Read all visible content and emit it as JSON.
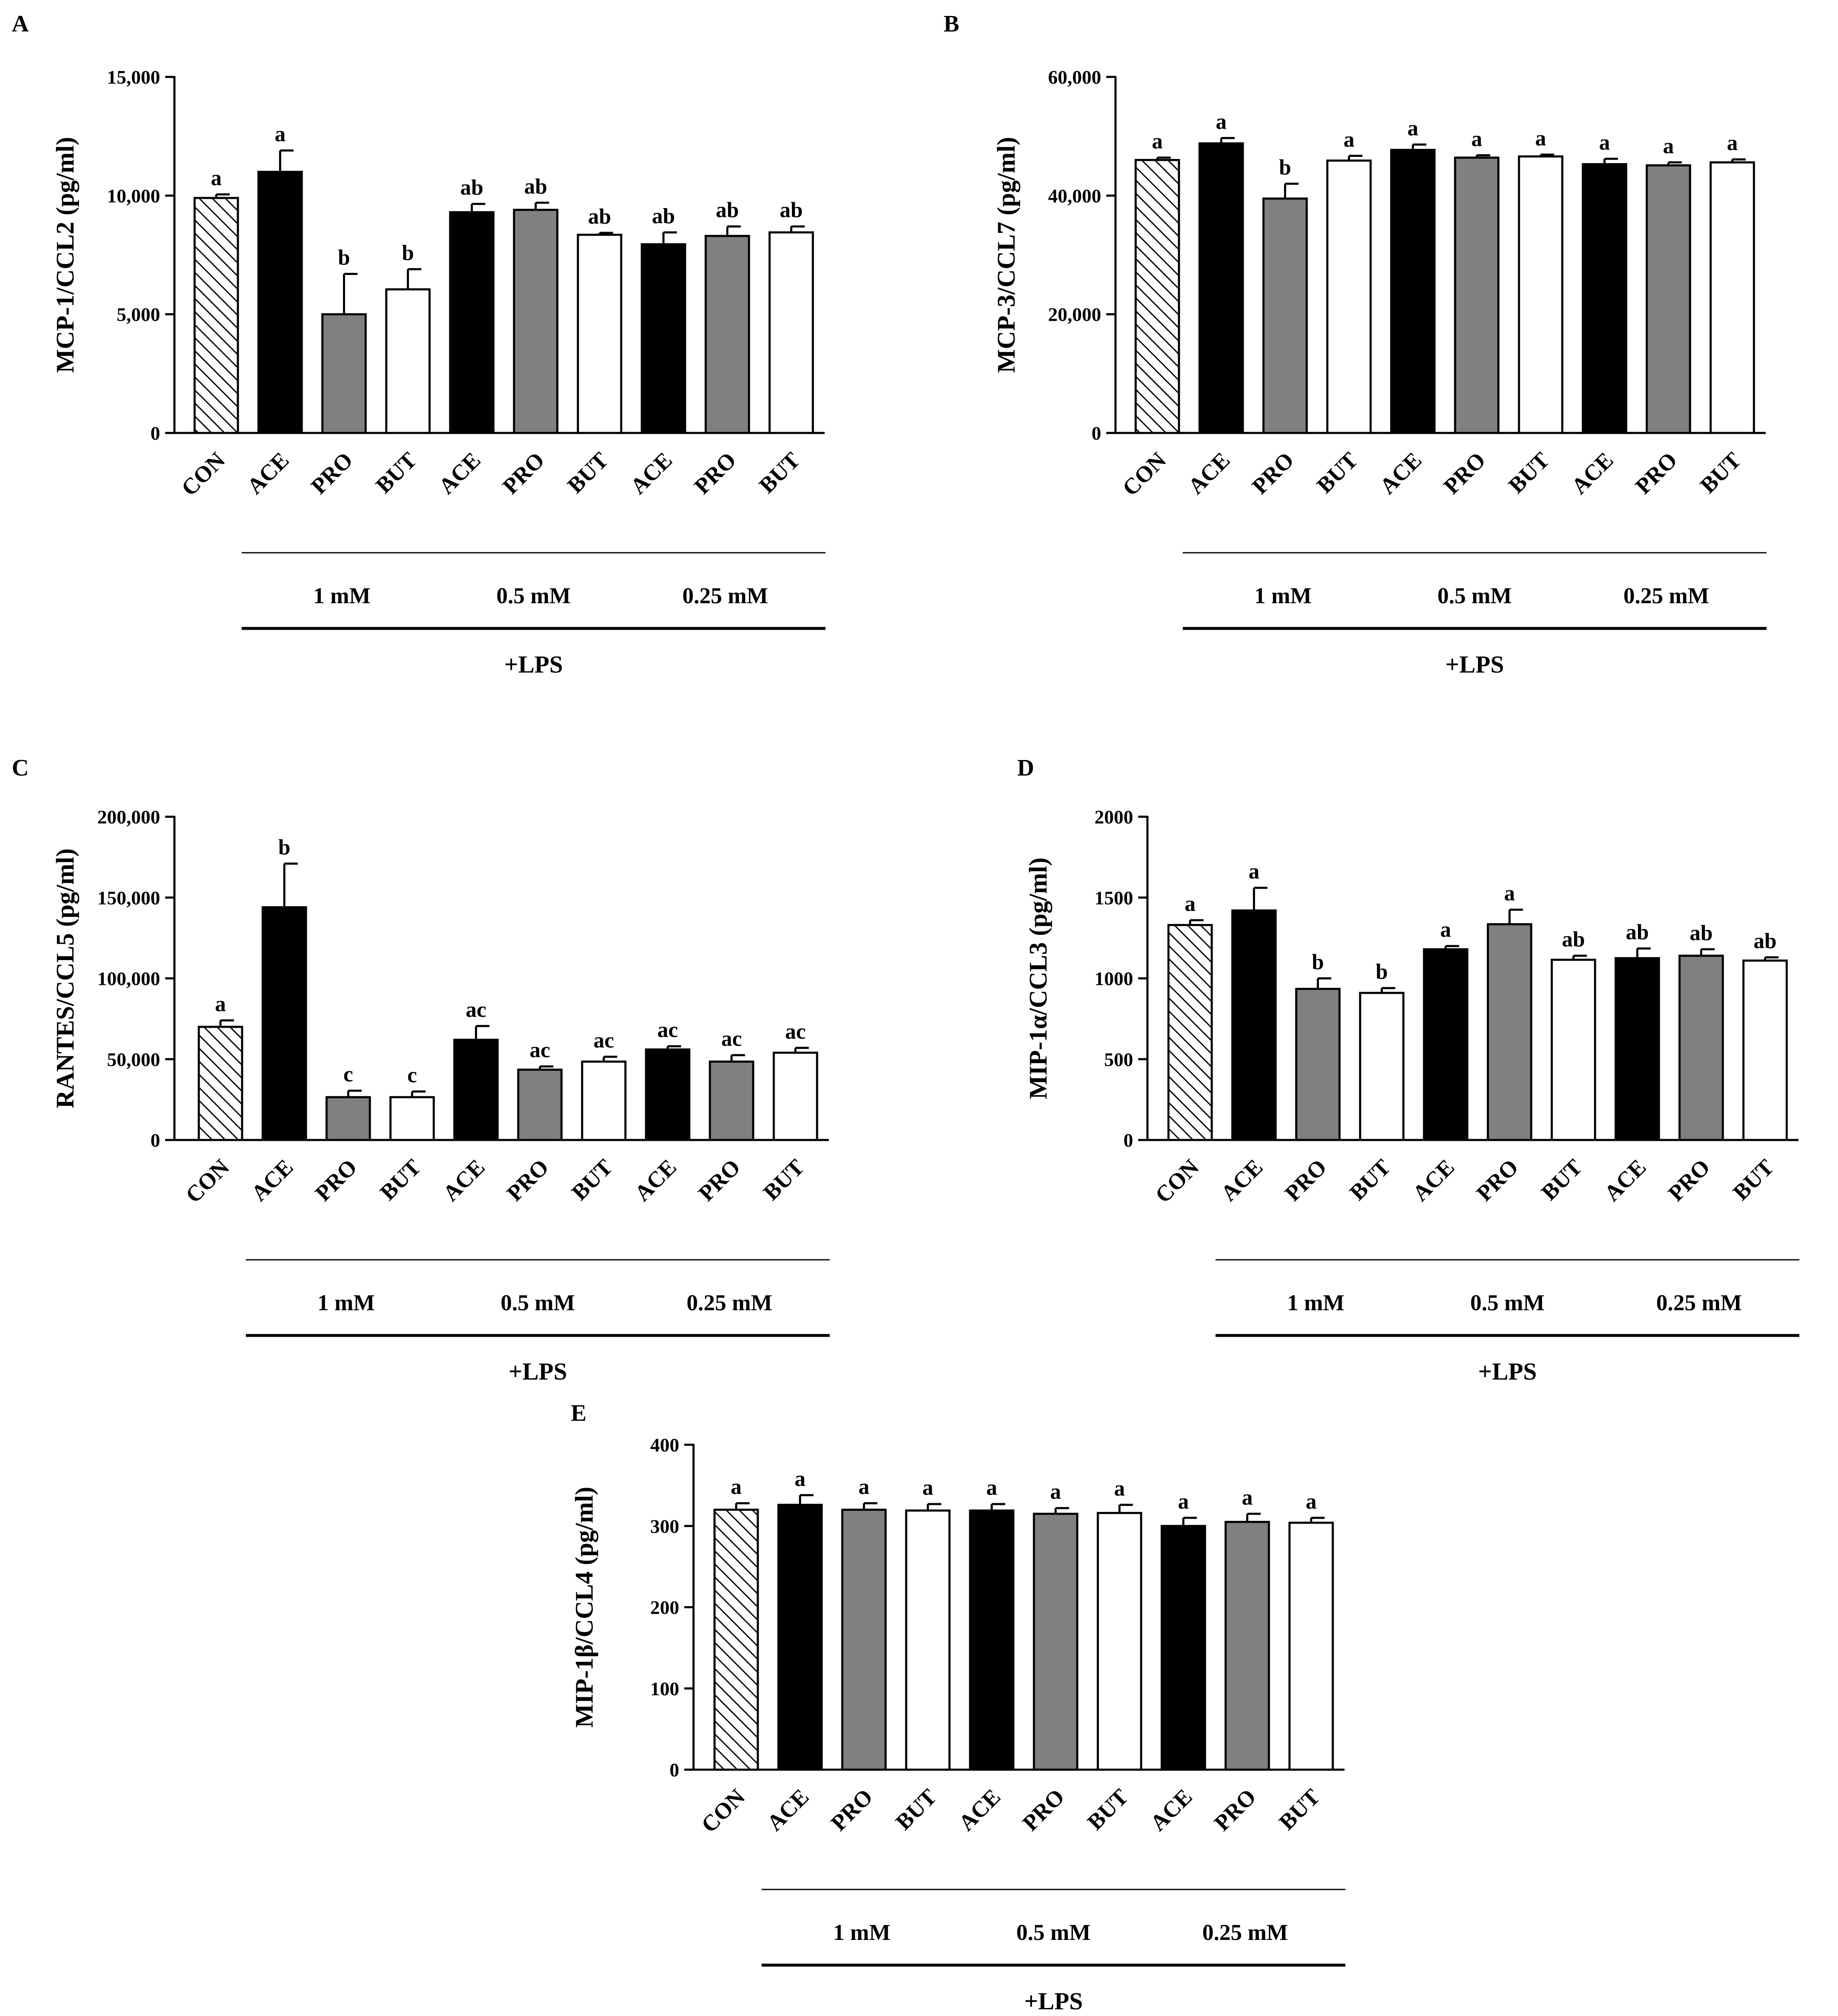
{
  "figure": {
    "group_labels": [
      "1 mM",
      "0.5 mM",
      "0.25 mM"
    ],
    "treatment_label": "+LPS",
    "categories": [
      "CON",
      "ACE",
      "PRO",
      "BUT",
      "ACE",
      "PRO",
      "BUT",
      "ACE",
      "PRO",
      "BUT"
    ],
    "fill_scheme": [
      "hatch",
      "black",
      "gray",
      "white",
      "black",
      "gray",
      "white",
      "black",
      "gray",
      "white"
    ],
    "colors": {
      "black": "#000000",
      "gray": "#808080",
      "white": "#ffffff",
      "hatch": "#ffffff",
      "axis": "#000000"
    }
  },
  "chart_data": [
    {
      "panel": "A",
      "type": "bar",
      "ylabel": "MCP-1/CCL2 (pg/ml)",
      "ylim": [
        0,
        15000
      ],
      "yticks": [
        0,
        5000,
        10000,
        15000
      ],
      "ytick_labels": [
        "0",
        "5,000",
        "10,000",
        "15,000"
      ],
      "categories": [
        "CON",
        "ACE",
        "PRO",
        "BUT",
        "ACE",
        "PRO",
        "BUT",
        "ACE",
        "PRO",
        "BUT"
      ],
      "values": [
        9900,
        11000,
        5000,
        6050,
        9300,
        9400,
        8350,
        7950,
        8300,
        8450
      ],
      "errors": [
        150,
        900,
        1700,
        850,
        350,
        300,
        80,
        500,
        400,
        250
      ],
      "letters": [
        "a",
        "a",
        "b",
        "b",
        "ab",
        "ab",
        "ab",
        "ab",
        "ab",
        "ab"
      ]
    },
    {
      "panel": "B",
      "type": "bar",
      "ylabel": "MCP-3/CCL7 (pg/ml)",
      "ylim": [
        0,
        60000
      ],
      "yticks": [
        0,
        20000,
        40000,
        60000
      ],
      "ytick_labels": [
        "0",
        "20,000",
        "40,000",
        "60,000"
      ],
      "categories": [
        "CON",
        "ACE",
        "PRO",
        "BUT",
        "ACE",
        "PRO",
        "BUT",
        "ACE",
        "PRO",
        "BUT"
      ],
      "values": [
        46000,
        48800,
        39500,
        45900,
        47700,
        46400,
        46600,
        45300,
        45100,
        45600
      ],
      "errors": [
        400,
        900,
        2500,
        800,
        900,
        400,
        300,
        900,
        500,
        500
      ],
      "letters": [
        "a",
        "a",
        "b",
        "a",
        "a",
        "a",
        "a",
        "a",
        "a",
        "a"
      ]
    },
    {
      "panel": "C",
      "type": "bar",
      "ylabel": "RANTES/CCL5 (pg/ml)",
      "ylim": [
        0,
        200000
      ],
      "yticks": [
        0,
        50000,
        100000,
        150000,
        200000
      ],
      "ytick_labels": [
        "0",
        "50,000",
        "100,000",
        "150,000",
        "200,000"
      ],
      "categories": [
        "CON",
        "ACE",
        "PRO",
        "BUT",
        "ACE",
        "PRO",
        "BUT",
        "ACE",
        "PRO",
        "BUT"
      ],
      "values": [
        70000,
        144000,
        26500,
        26500,
        62000,
        43500,
        48500,
        56000,
        48500,
        54000
      ],
      "errors": [
        4000,
        27000,
        4000,
        3500,
        8500,
        2000,
        3000,
        2000,
        4000,
        3000
      ],
      "letters": [
        "a",
        "b",
        "c",
        "c",
        "ac",
        "ac",
        "ac",
        "ac",
        "ac",
        "ac"
      ]
    },
    {
      "panel": "D",
      "type": "bar",
      "ylabel": "MIP-1α/CCL3 (pg/ml)",
      "ylim": [
        0,
        2000
      ],
      "yticks": [
        0,
        500,
        1000,
        1500,
        2000
      ],
      "ytick_labels": [
        "0",
        "500",
        "1000",
        "1500",
        "2000"
      ],
      "categories": [
        "CON",
        "ACE",
        "PRO",
        "BUT",
        "ACE",
        "PRO",
        "BUT",
        "ACE",
        "PRO",
        "BUT"
      ],
      "values": [
        1330,
        1420,
        935,
        910,
        1180,
        1335,
        1115,
        1125,
        1140,
        1110
      ],
      "errors": [
        30,
        140,
        65,
        30,
        20,
        90,
        25,
        60,
        40,
        20
      ],
      "letters": [
        "a",
        "a",
        "b",
        "b",
        "a",
        "a",
        "ab",
        "ab",
        "ab",
        "ab"
      ]
    },
    {
      "panel": "E",
      "type": "bar",
      "ylabel": "MIP-1β/CCL4 (pg/ml)",
      "ylim": [
        0,
        400
      ],
      "yticks": [
        0,
        100,
        200,
        300,
        400
      ],
      "ytick_labels": [
        "0",
        "100",
        "200",
        "300",
        "400"
      ],
      "categories": [
        "CON",
        "ACE",
        "PRO",
        "BUT",
        "ACE",
        "PRO",
        "BUT",
        "ACE",
        "PRO",
        "BUT"
      ],
      "values": [
        320,
        326,
        320,
        319,
        319,
        315,
        316,
        300,
        305,
        304
      ],
      "errors": [
        8,
        12,
        8,
        8,
        8,
        7,
        10,
        10,
        10,
        6
      ],
      "letters": [
        "a",
        "a",
        "a",
        "a",
        "a",
        "a",
        "a",
        "a",
        "a",
        "a"
      ]
    }
  ]
}
